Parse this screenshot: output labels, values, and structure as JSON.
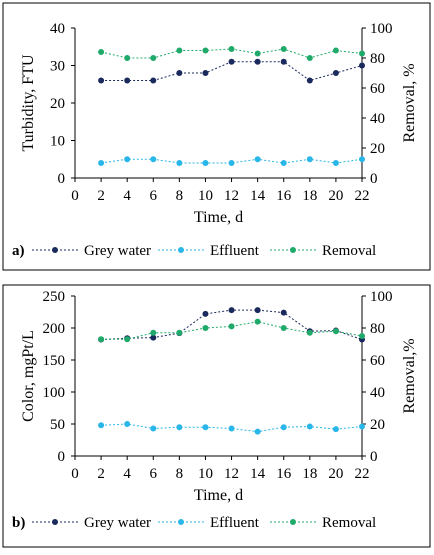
{
  "chart_data": [
    {
      "type": "line",
      "panel_label": "a)",
      "xlabel": "Time, d",
      "ylabel": "Turbidity, FTU",
      "y2label": "Removal, %",
      "xlim": [
        0,
        22
      ],
      "xticks": [
        0,
        2,
        4,
        6,
        8,
        10,
        12,
        14,
        16,
        18,
        20,
        22
      ],
      "ylim": [
        0,
        40
      ],
      "yticks": [
        0,
        10,
        20,
        30,
        40
      ],
      "y2lim": [
        0,
        100
      ],
      "y2ticks": [
        0,
        20,
        40,
        60,
        80,
        100
      ],
      "grid": false,
      "legend_position": "bottom",
      "x": [
        2,
        4,
        6,
        8,
        10,
        12,
        14,
        16,
        18,
        20,
        22
      ],
      "series": [
        {
          "name": "Grey water",
          "axis": "left",
          "color": "#1b2a5c",
          "values": [
            26,
            26,
            26,
            28,
            28,
            31,
            31,
            31,
            26,
            28,
            30
          ]
        },
        {
          "name": "Effluent",
          "axis": "left",
          "color": "#29b6e8",
          "values": [
            4,
            5,
            5,
            4,
            4,
            4,
            5,
            4,
            5,
            4,
            5
          ]
        },
        {
          "name": "Removal",
          "axis": "right",
          "color": "#1faa6a",
          "values": [
            84,
            80,
            80,
            85,
            85,
            86,
            83,
            86,
            80,
            85,
            83
          ]
        }
      ]
    },
    {
      "type": "line",
      "panel_label": "b)",
      "xlabel": "Time, d",
      "ylabel": "Color, mgPt/L",
      "y2label": "Removal,%",
      "xlim": [
        0,
        22
      ],
      "xticks": [
        0,
        2,
        4,
        6,
        8,
        10,
        12,
        14,
        16,
        18,
        20,
        22
      ],
      "ylim": [
        0,
        250
      ],
      "yticks": [
        0,
        50,
        100,
        150,
        200,
        250
      ],
      "y2lim": [
        0,
        100
      ],
      "y2ticks": [
        0,
        20,
        40,
        60,
        80,
        100
      ],
      "grid": false,
      "legend_position": "bottom",
      "x": [
        2,
        4,
        6,
        8,
        10,
        12,
        14,
        16,
        18,
        20,
        22
      ],
      "series": [
        {
          "name": "Grey water",
          "axis": "left",
          "color": "#1b2a5c",
          "values": [
            182,
            184,
            185,
            192,
            222,
            228,
            228,
            224,
            195,
            196,
            182
          ]
        },
        {
          "name": "Effluent",
          "axis": "left",
          "color": "#29b6e8",
          "values": [
            48,
            50,
            43,
            45,
            45,
            43,
            38,
            45,
            46,
            42,
            46
          ]
        },
        {
          "name": "Removal",
          "axis": "right",
          "color": "#1faa6a",
          "values": [
            73,
            73,
            77,
            77,
            80,
            81,
            84,
            80,
            77,
            78,
            75
          ]
        }
      ]
    }
  ]
}
